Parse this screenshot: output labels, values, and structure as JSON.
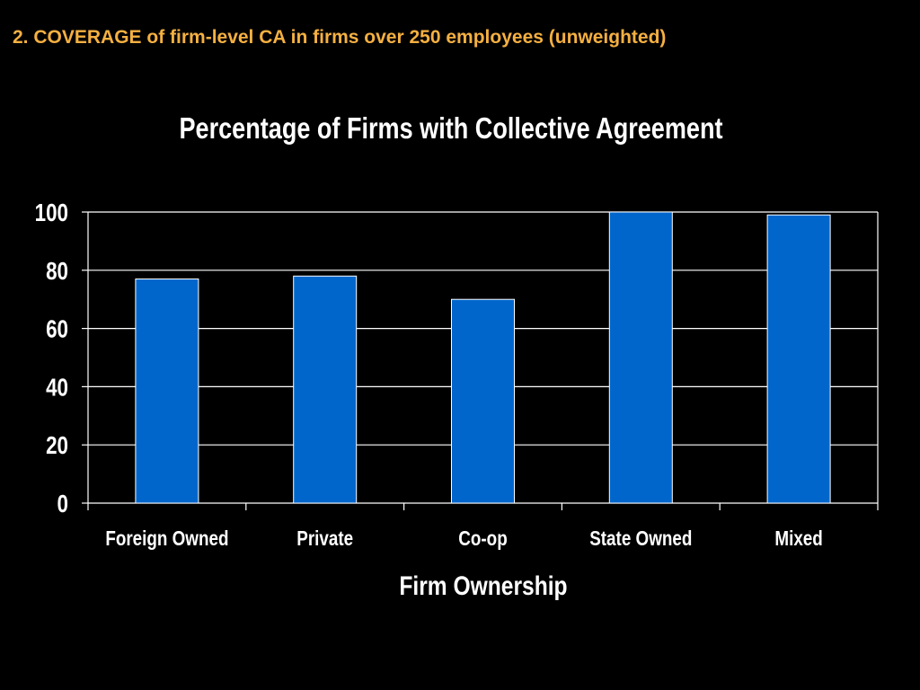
{
  "slide": {
    "heading": "2. COVERAGE of firm-level CA in firms over 250 employees (unweighted)"
  },
  "colors": {
    "background": "#000000",
    "heading": "#F5B041",
    "bar_fill": "#0066CC",
    "bar_stroke": "#ffffff",
    "text": "#ffffff",
    "grid": "#ffffff"
  },
  "chart_data": {
    "type": "bar",
    "title": "Percentage of Firms with Collective Agreement",
    "xlabel": "Firm Ownership",
    "ylabel": "",
    "categories": [
      "Foreign Owned",
      "Private",
      "Co-op",
      "State Owned",
      "Mixed"
    ],
    "values": [
      77,
      78,
      70,
      100,
      99
    ],
    "ylim": [
      0,
      100
    ],
    "yticks": [
      0,
      20,
      40,
      60,
      80,
      100
    ],
    "grid": true,
    "legend": "none"
  }
}
